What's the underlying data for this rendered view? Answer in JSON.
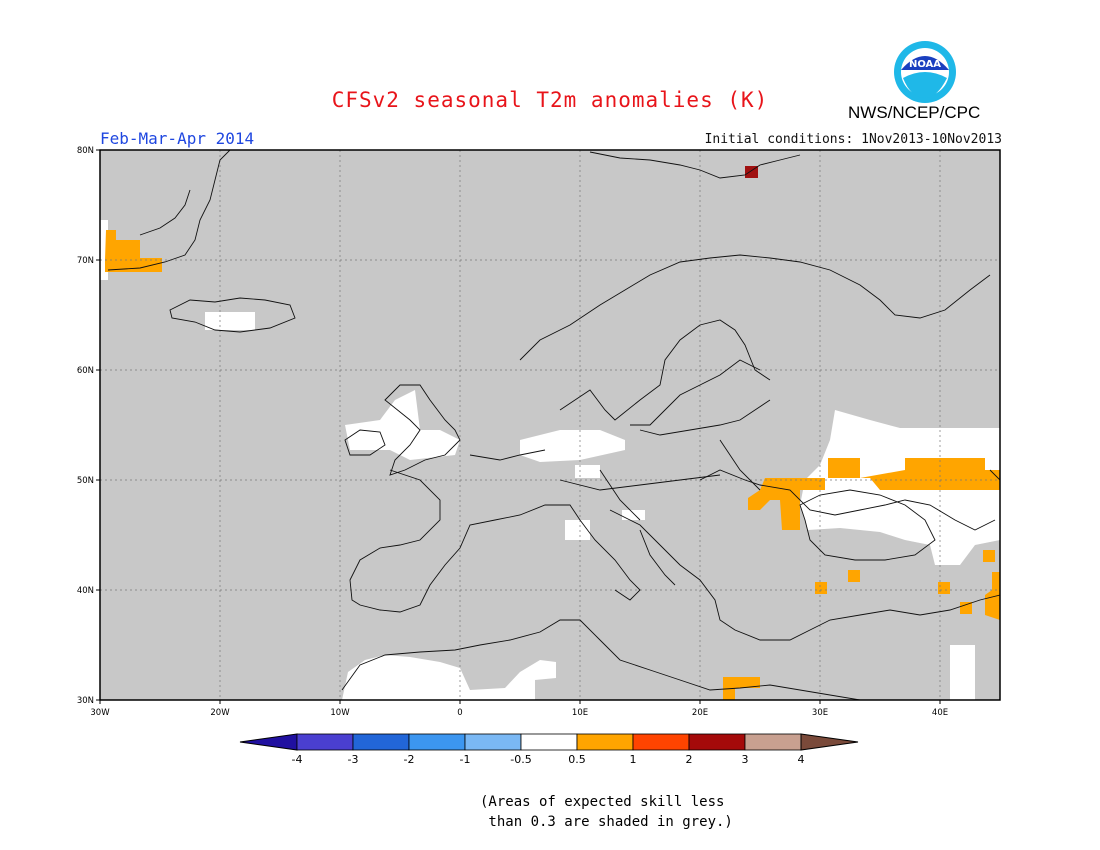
{
  "header": {
    "title": "CFSv2 seasonal T2m anomalies (K)",
    "season": "Feb-Mar-Apr 2014",
    "initial_conditions": "Initial conditions: 1Nov2013-10Nov2013",
    "org": "NWS/NCEP/CPC",
    "logo_text": "NOAA"
  },
  "map": {
    "background_color": "#c8c8c8",
    "lon_ticks": [
      "30W",
      "20W",
      "10W",
      "0",
      "10E",
      "20E",
      "30E",
      "40E"
    ],
    "lat_ticks": [
      "80N",
      "70N",
      "60N",
      "50N",
      "40N",
      "30N"
    ],
    "lon_range": [
      -30,
      45
    ],
    "lat_range": [
      30,
      80
    ],
    "regions": [
      {
        "label": "white-north-africa",
        "color": "#ffffff"
      },
      {
        "label": "white-eastern-europe",
        "color": "#ffffff"
      },
      {
        "label": "orange-ukraine-russia",
        "color": "#ffa500"
      },
      {
        "label": "orange-greenland",
        "color": "#ffa500"
      },
      {
        "label": "darkred-svalbard",
        "color": "#a01010"
      }
    ]
  },
  "colorbar": {
    "labels": [
      "-4",
      "-3",
      "-2",
      "-1",
      "-0.5",
      "0.5",
      "1",
      "2",
      "3",
      "4"
    ],
    "colors": [
      "#2010a0",
      "#4a3fd0",
      "#2266d8",
      "#3c96f0",
      "#7ab8f4",
      "#ffffff",
      "#ffa500",
      "#ff4400",
      "#a50a0a",
      "#c8a090",
      "#7a4a3a"
    ]
  },
  "note": "(Areas of expected skill less\n than 0.3 are shaded in grey.)"
}
